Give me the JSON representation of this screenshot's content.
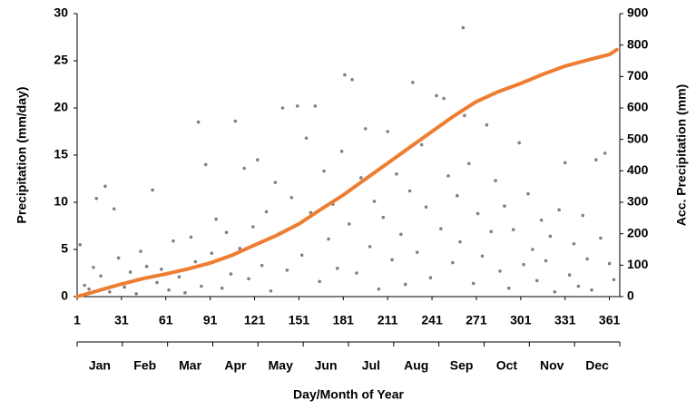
{
  "chart_data": {
    "type": "scatter",
    "xlabel": "Day/Month of Year",
    "ylabel": "Precipitation (mm/day)",
    "y2label": "Acc. Precipitation (mm)",
    "xlim": [
      1,
      368
    ],
    "xticks": [
      1,
      31,
      61,
      91,
      121,
      151,
      181,
      211,
      241,
      271,
      301,
      331,
      361
    ],
    "ylim": [
      0,
      30
    ],
    "yticks": [
      0,
      5,
      10,
      15,
      20,
      25,
      30
    ],
    "y2lim": [
      0,
      900
    ],
    "y2ticks": [
      0,
      100,
      200,
      300,
      400,
      500,
      600,
      700,
      800,
      900
    ],
    "months": [
      "Jan",
      "Feb",
      "Mar",
      "Apr",
      "May",
      "Jun",
      "Jul",
      "Aug",
      "Sep",
      "Oct",
      "Nov",
      "Dec"
    ],
    "series": [
      {
        "type": "scatter",
        "color": "#808080",
        "x": [
          3,
          6,
          9,
          12,
          14,
          17,
          20,
          23,
          26,
          29,
          33,
          37,
          41,
          44,
          48,
          52,
          55,
          58,
          63,
          66,
          70,
          74,
          78,
          81,
          83,
          85,
          88,
          92,
          95,
          99,
          102,
          105,
          108,
          111,
          114,
          117,
          120,
          123,
          126,
          129,
          132,
          135,
          138,
          140,
          143,
          146,
          150,
          153,
          156,
          159,
          162,
          165,
          168,
          171,
          174,
          177,
          180,
          182,
          185,
          187,
          190,
          193,
          196,
          199,
          202,
          205,
          208,
          211,
          214,
          217,
          220,
          223,
          226,
          228,
          231,
          234,
          237,
          240,
          244,
          247,
          249,
          252,
          255,
          258,
          260,
          262,
          263,
          266,
          269,
          272,
          275,
          278,
          281,
          284,
          287,
          290,
          293,
          296,
          300,
          303,
          306,
          309,
          312,
          315,
          318,
          321,
          324,
          327,
          331,
          334,
          337,
          340,
          343,
          346,
          349,
          352,
          355,
          358,
          361,
          364
        ],
        "y": [
          5.5,
          1.2,
          0.8,
          3.1,
          10.4,
          2.2,
          11.7,
          0.5,
          9.3,
          4.1,
          1.0,
          2.6,
          0.3,
          4.8,
          3.2,
          11.3,
          1.5,
          2.9,
          0.7,
          5.9,
          2.1,
          0.4,
          6.3,
          3.7,
          18.5,
          1.1,
          14.0,
          4.6,
          8.2,
          0.9,
          6.8,
          2.4,
          18.6,
          5.1,
          13.6,
          1.9,
          7.4,
          14.5,
          3.3,
          9.0,
          0.6,
          12.1,
          6.7,
          20.0,
          2.8,
          10.5,
          20.2,
          4.4,
          16.8,
          8.9,
          20.2,
          1.6,
          13.3,
          6.1,
          9.8,
          3.0,
          15.4,
          23.5,
          7.7,
          23.0,
          2.5,
          12.6,
          17.8,
          5.3,
          10.1,
          0.8,
          8.4,
          17.5,
          3.9,
          13.0,
          6.6,
          1.3,
          11.2,
          22.7,
          4.7,
          16.1,
          9.5,
          2.0,
          21.3,
          7.2,
          21.0,
          12.8,
          3.6,
          10.7,
          5.8,
          28.5,
          19.2,
          14.1,
          1.4,
          8.8,
          4.3,
          18.2,
          6.9,
          12.3,
          2.7,
          9.6,
          0.9,
          7.1,
          16.3,
          3.4,
          10.9,
          5.0,
          1.7,
          8.1,
          3.8,
          6.4,
          0.5,
          9.2,
          14.2,
          2.3,
          5.6,
          1.1,
          8.6,
          4.0,
          0.7,
          14.5,
          6.2,
          15.2,
          3.5,
          1.8
        ]
      },
      {
        "type": "line",
        "axis": "y2",
        "color": "#ed7d31",
        "x": [
          1,
          16,
          31,
          46,
          61,
          76,
          91,
          106,
          121,
          136,
          151,
          166,
          181,
          196,
          211,
          226,
          241,
          256,
          271,
          286,
          301,
          316,
          331,
          346,
          361,
          366
        ],
        "values": [
          0,
          20,
          40,
          58,
          72,
          88,
          107,
          132,
          164,
          195,
          231,
          278,
          323,
          374,
          424,
          475,
          525,
          575,
          620,
          652,
          678,
          707,
          733,
          752,
          770,
          785
        ]
      }
    ]
  }
}
